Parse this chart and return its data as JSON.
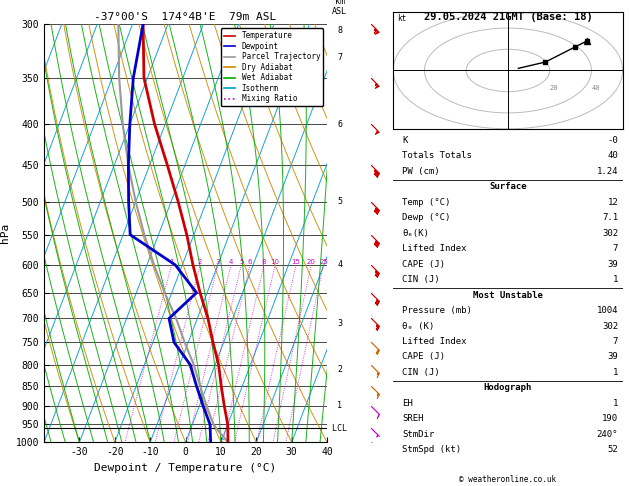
{
  "title_left": "-37°00'S  174°4B'E  79m ASL",
  "title_right": "29.05.2024 21GMT (Base: 18)",
  "ylabel_left": "hPa",
  "xlabel": "Dewpoint / Temperature (°C)",
  "bg_color": "#ffffff",
  "temp_color": "#cc0000",
  "dewp_color": "#0000cc",
  "parcel_color": "#999999",
  "dry_adiabat_color": "#cc8800",
  "wet_adiabat_color": "#00aa00",
  "isotherm_color": "#0099cc",
  "mixing_ratio_color": "#cc00cc",
  "legend_items": [
    [
      "Temperature",
      "#cc0000",
      "-"
    ],
    [
      "Dewpoint",
      "#0000cc",
      "-"
    ],
    [
      "Parcel Trajectory",
      "#999999",
      "-"
    ],
    [
      "Dry Adiabat",
      "#cc8800",
      "-"
    ],
    [
      "Wet Adiabat",
      "#00aa00",
      "-"
    ],
    [
      "Isotherm",
      "#0099cc",
      "-"
    ],
    [
      "Mixing Ratio",
      "#cc00cc",
      ":"
    ]
  ],
  "temp_profile": {
    "pressure": [
      1000,
      950,
      900,
      850,
      800,
      750,
      700,
      650,
      600,
      550,
      500,
      450,
      400,
      350,
      300
    ],
    "temp": [
      12,
      10,
      7,
      4,
      1,
      -3,
      -7,
      -12,
      -17,
      -22,
      -28,
      -35,
      -43,
      -51,
      -57
    ]
  },
  "dewp_profile": {
    "pressure": [
      1000,
      950,
      900,
      850,
      800,
      750,
      700,
      650,
      600,
      550,
      500,
      450,
      400,
      350,
      300
    ],
    "dewp": [
      7.1,
      5,
      1,
      -3,
      -7,
      -14,
      -18,
      -13,
      -22,
      -38,
      -42,
      -46,
      -50,
      -54,
      -57
    ]
  },
  "parcel_profile": {
    "pressure": [
      1000,
      960,
      950,
      900,
      850,
      800,
      750,
      700,
      650,
      600,
      550,
      500,
      450,
      400,
      350,
      300
    ],
    "temp": [
      12,
      7.1,
      6,
      2,
      -2,
      -6,
      -11,
      -16,
      -22,
      -28,
      -34,
      -40,
      -46,
      -52,
      -58,
      -64
    ]
  },
  "mixing_ratios": [
    1,
    2,
    3,
    4,
    5,
    6,
    8,
    10,
    15,
    20,
    25
  ],
  "lcl_pressure": 960,
  "lcl_label": "LCL",
  "pressure_levels": [
    300,
    350,
    400,
    450,
    500,
    550,
    600,
    650,
    700,
    750,
    800,
    850,
    900,
    950,
    1000
  ],
  "km_ticks": [
    8,
    7,
    6,
    5,
    4,
    3,
    2,
    1
  ],
  "km_pressures": [
    305,
    330,
    400,
    500,
    600,
    710,
    810,
    900
  ],
  "stats": {
    "K": "-0",
    "Totals Totals": "40",
    "PW (cm)": "1.24",
    "Surf_Temp": "12",
    "Surf_Dewp": "7.1",
    "Surf_theta_e": "302",
    "Surf_LI": "7",
    "Surf_CAPE": "39",
    "Surf_CIN": "1",
    "MU_Pressure": "1004",
    "MU_theta_e": "302",
    "MU_LI": "7",
    "MU_CAPE": "39",
    "MU_CIN": "1",
    "EH": "1",
    "SREH": "190",
    "StmDir": "240°",
    "StmSpd": "52"
  },
  "wind_barb_data": {
    "pressures": [
      1000,
      960,
      900,
      850,
      800,
      750,
      700,
      650,
      600,
      550,
      500,
      450,
      400,
      350,
      300
    ],
    "u": [
      -5,
      -4,
      -8,
      -10,
      -12,
      -15,
      -18,
      -20,
      -25,
      -28,
      -30,
      -32,
      -35,
      -40,
      -45
    ],
    "v": [
      5,
      4,
      8,
      10,
      12,
      15,
      18,
      20,
      25,
      28,
      30,
      32,
      35,
      40,
      45
    ],
    "colors": [
      "#00cccc",
      "#cc00cc",
      "#cc00cc",
      "#cc6600",
      "#cc6600",
      "#cc6600",
      "#cc0000",
      "#cc0000",
      "#cc0000",
      "#cc0000",
      "#cc0000",
      "#cc0000",
      "#cc0000",
      "#cc0000",
      "#cc0000"
    ]
  },
  "copyright": "© weatheronline.co.uk"
}
